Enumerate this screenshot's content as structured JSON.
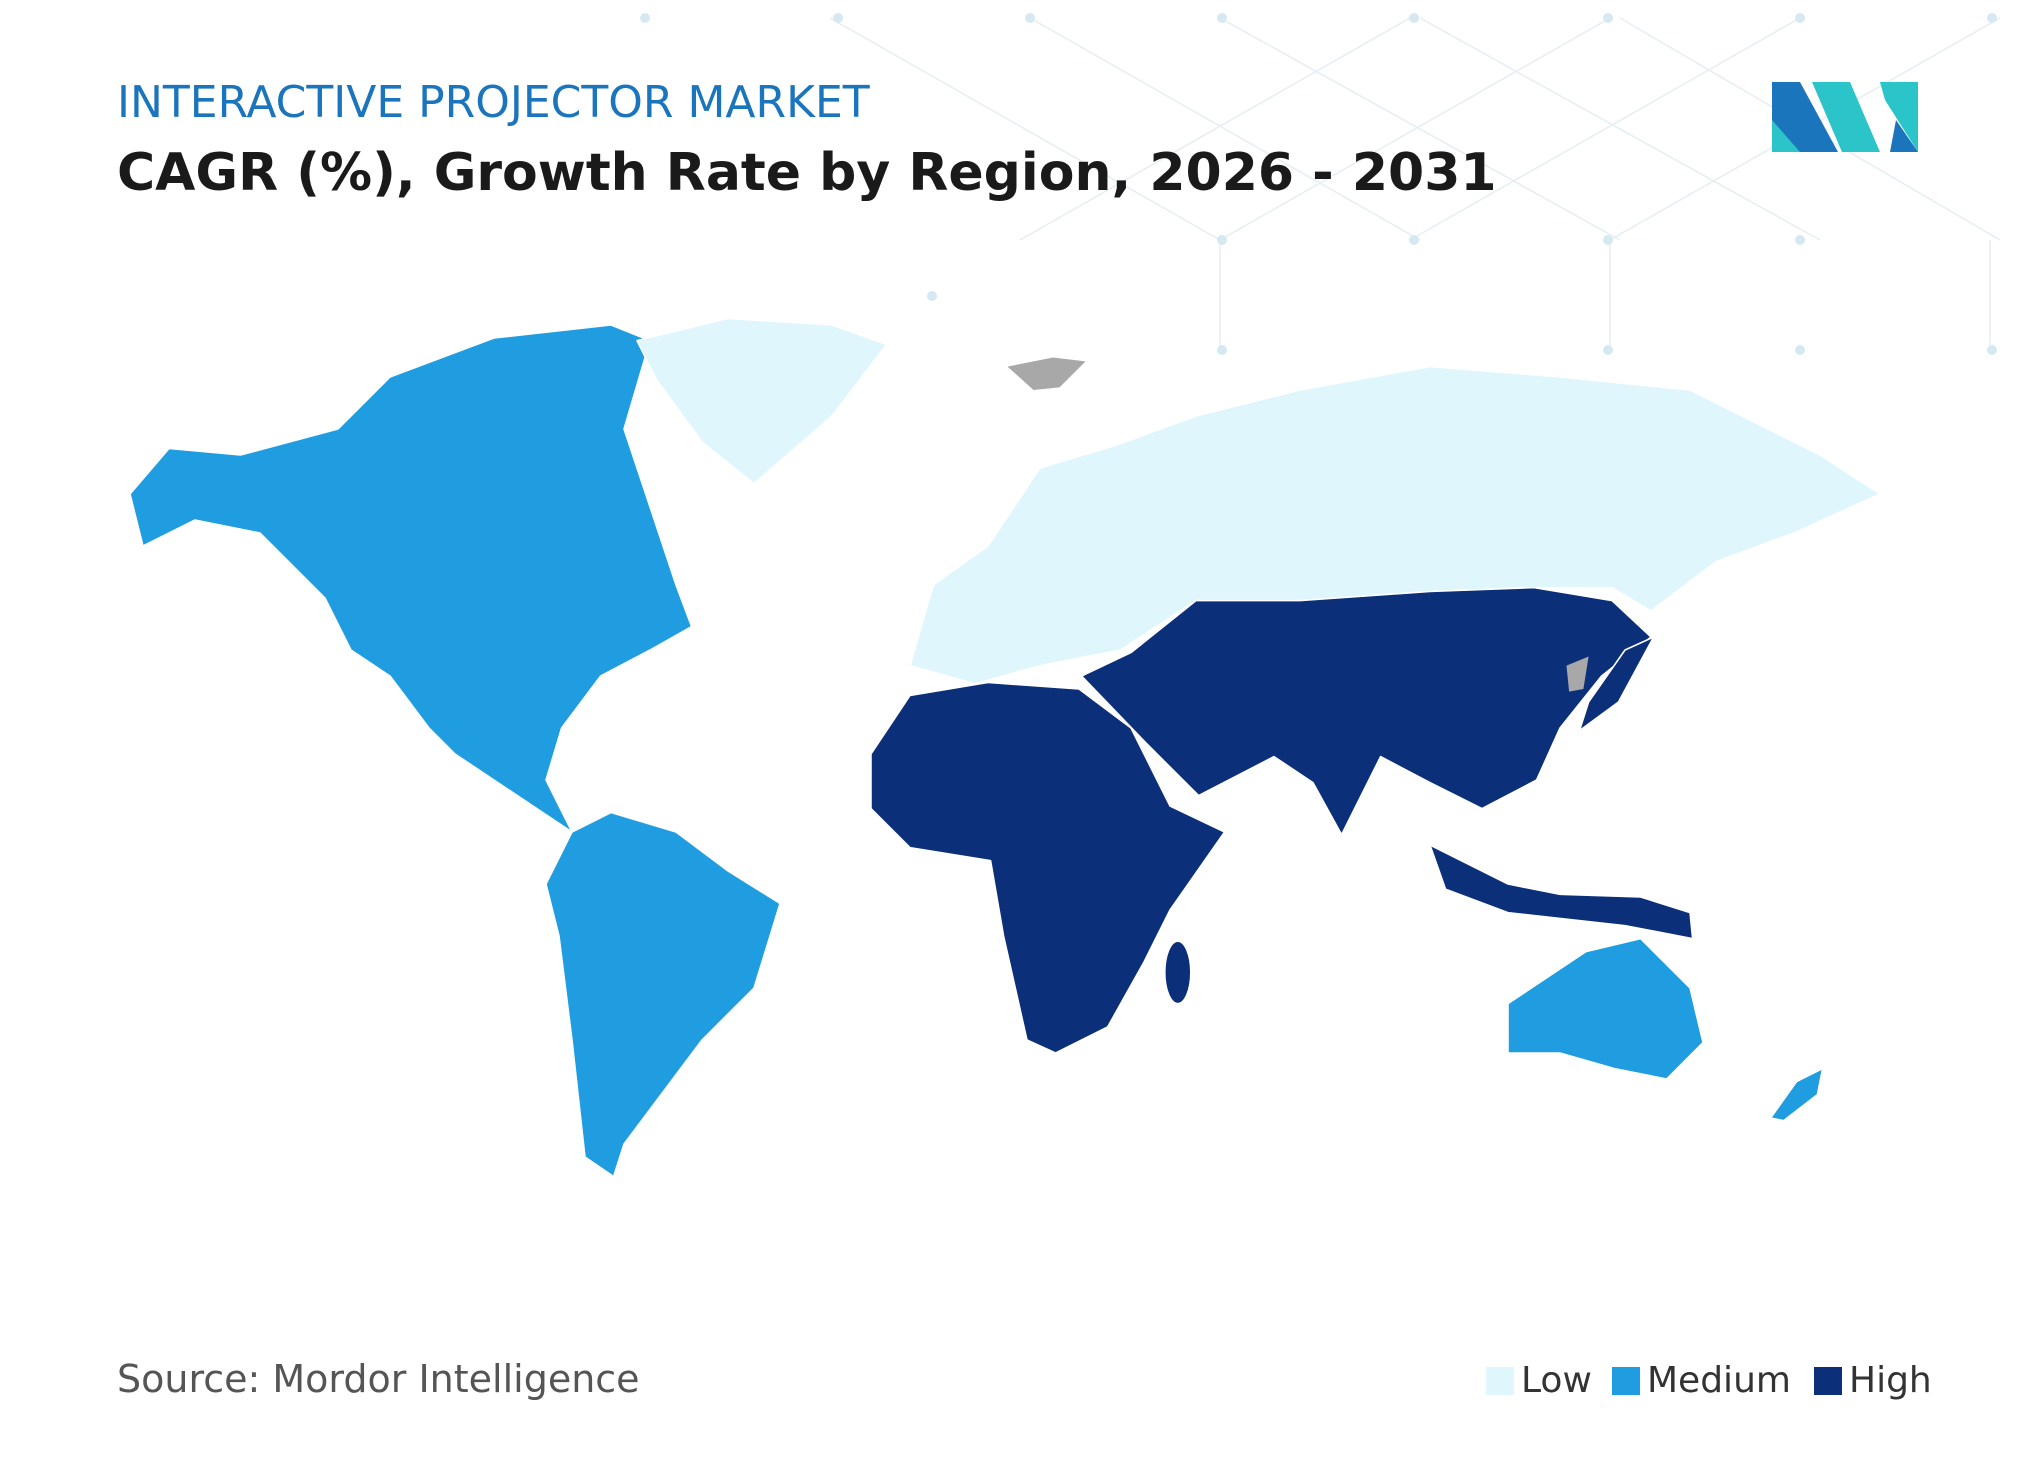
{
  "header": {
    "title": "INTERACTIVE PROJECTOR MARKET",
    "subtitle": "CAGR (%), Growth Rate by Region, 2026 - 2031"
  },
  "legend": [
    {
      "label": "Low",
      "color": "#dff6fd"
    },
    {
      "label": "Medium",
      "color": "#1f9de0"
    },
    {
      "label": "High",
      "color": "#0b2f78"
    }
  ],
  "source": "Source: Mordor Intelligence"
}
